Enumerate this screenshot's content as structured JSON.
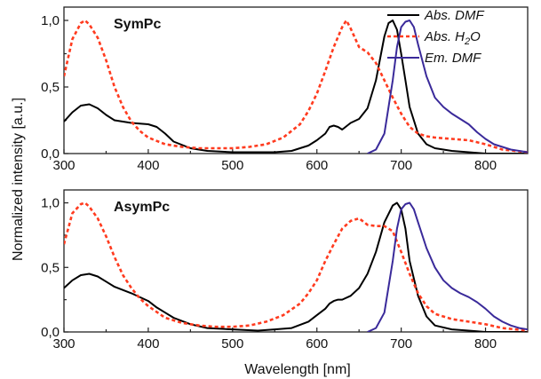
{
  "chart_data": {
    "type": "line",
    "xlabel": "Wavelength [nm]",
    "ylabel": "Normalized intensity [a.u.]",
    "xlim": [
      300,
      850
    ],
    "ylim": [
      0,
      1.1
    ],
    "x_ticks": [
      300,
      400,
      500,
      600,
      700,
      800
    ],
    "x_tick_labels": [
      "300",
      "400",
      "500",
      "600",
      "700",
      "800"
    ],
    "y_ticks": [
      0,
      0.5,
      1.0
    ],
    "y_tick_labels": [
      "0,0",
      "0,5",
      "1,0"
    ],
    "legend": {
      "placement": "top-right",
      "entries": [
        {
          "series": "Abs. DMF",
          "label_main": "Abs. DMF",
          "label_sub": "",
          "label_tail": "",
          "color": "#000000",
          "dash": "solid"
        },
        {
          "series": "Abs. H2O",
          "label_main": "Abs. H",
          "label_sub": "2",
          "label_tail": "O",
          "color": "#ff3b1f",
          "dash": "dotted"
        },
        {
          "series": "Em. DMF",
          "label_main": "Em. DMF",
          "label_sub": "",
          "label_tail": "",
          "color": "#3a2a9a",
          "dash": "solid"
        }
      ]
    },
    "panels": [
      {
        "title": "SymPc",
        "series": [
          {
            "name": "Abs. DMF",
            "color": "#000000",
            "dash": "solid",
            "x": [
              300,
              310,
              320,
              330,
              340,
              350,
              360,
              380,
              400,
              410,
              420,
              430,
              450,
              470,
              500,
              530,
              550,
              570,
              590,
              600,
              610,
              615,
              620,
              625,
              630,
              640,
              650,
              660,
              670,
              680,
              685,
              690,
              695,
              700,
              705,
              710,
              720,
              730,
              740,
              760,
              780,
              800,
              850
            ],
            "y": [
              0.24,
              0.31,
              0.36,
              0.37,
              0.34,
              0.29,
              0.25,
              0.23,
              0.22,
              0.2,
              0.15,
              0.09,
              0.04,
              0.02,
              0.01,
              0.01,
              0.01,
              0.02,
              0.06,
              0.1,
              0.15,
              0.2,
              0.21,
              0.2,
              0.18,
              0.23,
              0.26,
              0.34,
              0.55,
              0.88,
              0.98,
              1.0,
              0.93,
              0.75,
              0.55,
              0.35,
              0.15,
              0.07,
              0.04,
              0.02,
              0.01,
              0.0,
              0.0
            ]
          },
          {
            "name": "Abs. H2O",
            "color": "#ff3b1f",
            "dash": "dotted",
            "x": [
              300,
              310,
              320,
              325,
              330,
              340,
              350,
              360,
              370,
              380,
              390,
              400,
              420,
              440,
              460,
              480,
              500,
              520,
              540,
              560,
              580,
              590,
              600,
              610,
              620,
              630,
              635,
              640,
              650,
              660,
              670,
              680,
              690,
              700,
              710,
              720,
              730,
              740,
              760,
              780,
              800,
              820,
              850
            ],
            "y": [
              0.58,
              0.86,
              0.98,
              1.0,
              0.97,
              0.87,
              0.7,
              0.5,
              0.35,
              0.24,
              0.17,
              0.12,
              0.07,
              0.05,
              0.04,
              0.04,
              0.04,
              0.05,
              0.07,
              0.12,
              0.22,
              0.32,
              0.45,
              0.62,
              0.8,
              0.95,
              1.0,
              0.94,
              0.8,
              0.76,
              0.68,
              0.55,
              0.42,
              0.3,
              0.2,
              0.15,
              0.13,
              0.12,
              0.11,
              0.1,
              0.07,
              0.03,
              0.01
            ]
          },
          {
            "name": "Em. DMF",
            "color": "#3a2a9a",
            "dash": "solid",
            "x": [
              660,
              670,
              680,
              690,
              695,
              700,
              705,
              710,
              715,
              720,
              730,
              740,
              750,
              760,
              770,
              780,
              790,
              800,
              810,
              820,
              830,
              840,
              850
            ],
            "y": [
              0.0,
              0.03,
              0.15,
              0.55,
              0.8,
              0.95,
              0.99,
              1.0,
              0.95,
              0.82,
              0.58,
              0.42,
              0.35,
              0.3,
              0.26,
              0.22,
              0.16,
              0.11,
              0.07,
              0.05,
              0.03,
              0.02,
              0.01
            ]
          }
        ]
      },
      {
        "title": "AsymPc",
        "series": [
          {
            "name": "Abs. DMF",
            "color": "#000000",
            "dash": "solid",
            "x": [
              300,
              310,
              320,
              330,
              340,
              350,
              360,
              380,
              400,
              410,
              420,
              430,
              450,
              470,
              500,
              530,
              550,
              570,
              590,
              600,
              610,
              615,
              620,
              625,
              630,
              640,
              650,
              660,
              670,
              680,
              690,
              695,
              700,
              705,
              710,
              720,
              730,
              740,
              760,
              780,
              800,
              850
            ],
            "y": [
              0.34,
              0.4,
              0.44,
              0.45,
              0.43,
              0.39,
              0.35,
              0.3,
              0.24,
              0.19,
              0.15,
              0.11,
              0.06,
              0.03,
              0.02,
              0.01,
              0.02,
              0.03,
              0.08,
              0.13,
              0.18,
              0.22,
              0.24,
              0.25,
              0.25,
              0.28,
              0.34,
              0.45,
              0.62,
              0.85,
              0.98,
              1.0,
              0.95,
              0.8,
              0.55,
              0.28,
              0.12,
              0.05,
              0.02,
              0.01,
              0.0,
              0.0
            ]
          },
          {
            "name": "Abs. H2O",
            "color": "#ff3b1f",
            "dash": "dotted",
            "x": [
              300,
              310,
              320,
              325,
              330,
              340,
              350,
              360,
              370,
              380,
              390,
              400,
              420,
              440,
              460,
              480,
              500,
              520,
              540,
              560,
              580,
              590,
              600,
              610,
              620,
              630,
              640,
              650,
              660,
              670,
              680,
              690,
              700,
              710,
              720,
              730,
              740,
              760,
              780,
              800,
              820,
              850
            ],
            "y": [
              0.68,
              0.92,
              0.99,
              1.0,
              0.97,
              0.88,
              0.74,
              0.58,
              0.44,
              0.34,
              0.26,
              0.2,
              0.11,
              0.07,
              0.05,
              0.04,
              0.04,
              0.05,
              0.08,
              0.13,
              0.22,
              0.3,
              0.4,
              0.55,
              0.68,
              0.8,
              0.86,
              0.88,
              0.83,
              0.82,
              0.82,
              0.78,
              0.62,
              0.45,
              0.3,
              0.2,
              0.14,
              0.1,
              0.08,
              0.06,
              0.03,
              0.01
            ]
          },
          {
            "name": "Em. DMF",
            "color": "#3a2a9a",
            "dash": "solid",
            "x": [
              660,
              670,
              680,
              690,
              695,
              700,
              705,
              710,
              715,
              720,
              730,
              740,
              750,
              760,
              770,
              780,
              790,
              800,
              810,
              820,
              830,
              840,
              850
            ],
            "y": [
              0.0,
              0.03,
              0.15,
              0.55,
              0.8,
              0.95,
              0.99,
              1.0,
              0.95,
              0.85,
              0.65,
              0.5,
              0.4,
              0.34,
              0.3,
              0.27,
              0.23,
              0.18,
              0.12,
              0.08,
              0.05,
              0.03,
              0.02
            ]
          }
        ]
      }
    ]
  }
}
